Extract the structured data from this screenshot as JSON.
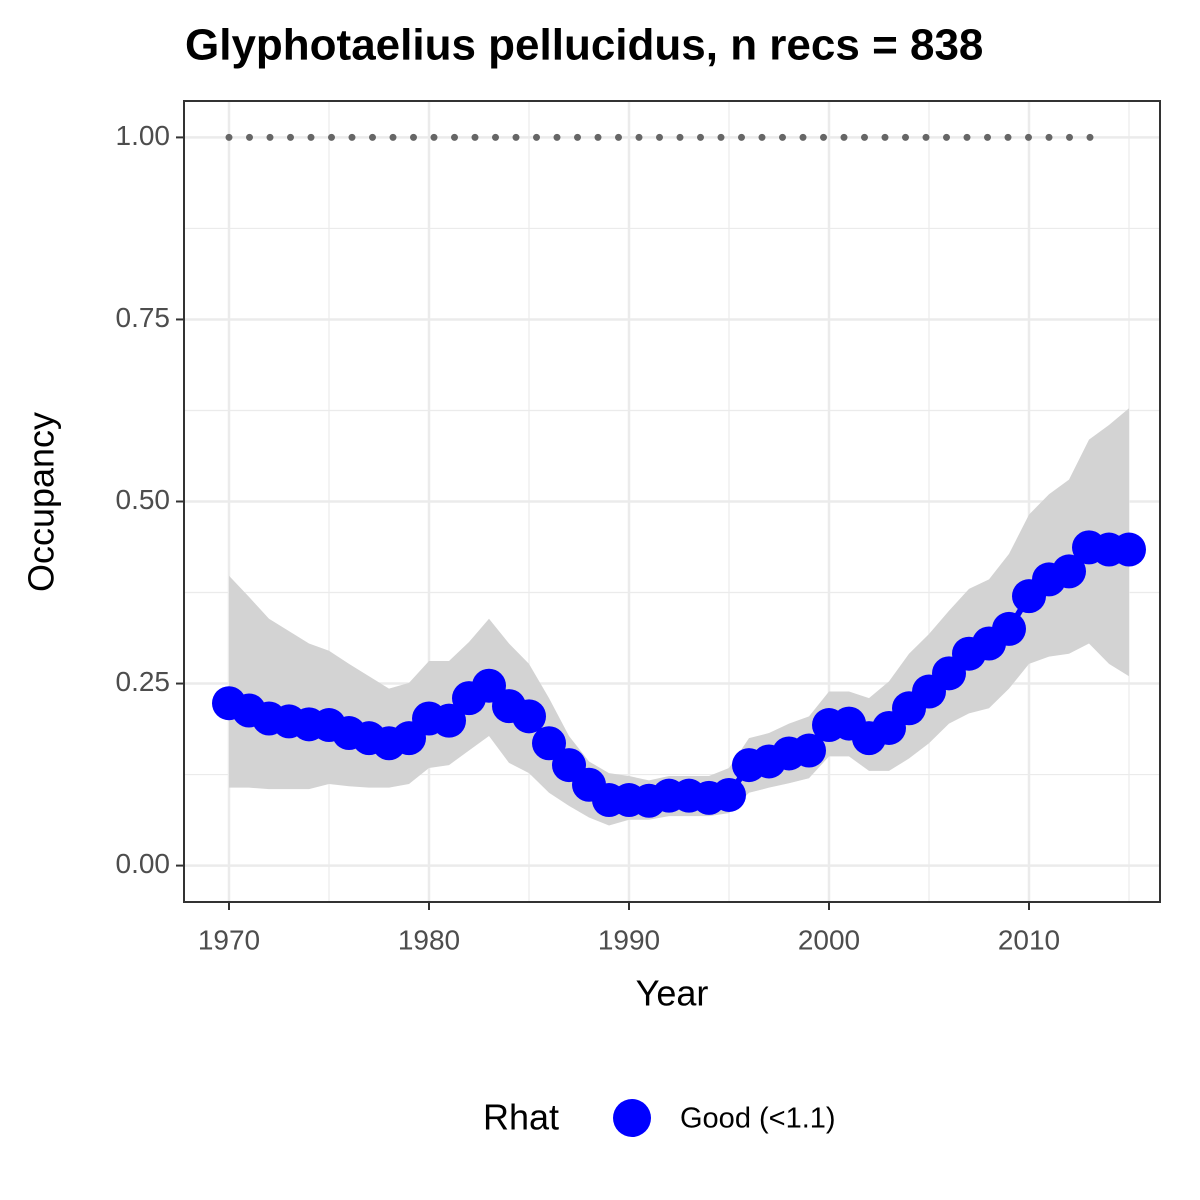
{
  "chart_data": {
    "type": "line",
    "title": "Glyphotaelius pellucidus, n recs = 838",
    "x_label": "Year",
    "y_label": "Occupancy",
    "legend_title": "Rhat",
    "legend_position": "bottom",
    "grid": true,
    "x": [
      1970,
      1971,
      1972,
      1973,
      1974,
      1975,
      1976,
      1977,
      1978,
      1979,
      1980,
      1981,
      1982,
      1983,
      1984,
      1985,
      1986,
      1987,
      1988,
      1989,
      1990,
      1991,
      1992,
      1993,
      1994,
      1995,
      1996,
      1997,
      1998,
      1999,
      2000,
      2001,
      2002,
      2003,
      2004,
      2005,
      2006,
      2007,
      2008,
      2009,
      2010,
      2011,
      2012,
      2013,
      2014,
      2015
    ],
    "series": [
      {
        "name": "Good (<1.1)",
        "color": "#0000ff",
        "ribbon_color": "#d3d3d3",
        "values": [
          0.223,
          0.213,
          0.202,
          0.198,
          0.194,
          0.193,
          0.182,
          0.175,
          0.168,
          0.175,
          0.202,
          0.199,
          0.23,
          0.247,
          0.219,
          0.205,
          0.168,
          0.138,
          0.111,
          0.09,
          0.09,
          0.089,
          0.096,
          0.096,
          0.093,
          0.097,
          0.138,
          0.143,
          0.154,
          0.158,
          0.193,
          0.195,
          0.175,
          0.189,
          0.216,
          0.239,
          0.264,
          0.291,
          0.305,
          0.325,
          0.37,
          0.393,
          0.404,
          0.437,
          0.434,
          0.434
        ],
        "upper": [
          0.398,
          0.369,
          0.339,
          0.322,
          0.305,
          0.295,
          0.277,
          0.26,
          0.243,
          0.251,
          0.281,
          0.281,
          0.307,
          0.339,
          0.305,
          0.277,
          0.23,
          0.178,
          0.143,
          0.127,
          0.123,
          0.117,
          0.123,
          0.123,
          0.123,
          0.134,
          0.175,
          0.182,
          0.195,
          0.205,
          0.239,
          0.239,
          0.23,
          0.253,
          0.291,
          0.318,
          0.35,
          0.38,
          0.393,
          0.428,
          0.482,
          0.51,
          0.53,
          0.585,
          0.605,
          0.628
        ],
        "lower": [
          0.107,
          0.107,
          0.105,
          0.105,
          0.105,
          0.112,
          0.109,
          0.107,
          0.107,
          0.112,
          0.134,
          0.138,
          0.158,
          0.178,
          0.141,
          0.127,
          0.1,
          0.082,
          0.066,
          0.055,
          0.063,
          0.063,
          0.068,
          0.068,
          0.068,
          0.072,
          0.1,
          0.107,
          0.113,
          0.12,
          0.15,
          0.15,
          0.13,
          0.13,
          0.147,
          0.168,
          0.195,
          0.209,
          0.216,
          0.243,
          0.277,
          0.287,
          0.291,
          0.305,
          0.277,
          0.26
        ]
      }
    ],
    "reference_line": {
      "x": [
        1970,
        2014
      ],
      "y": [
        1,
        1
      ],
      "color": "#666666",
      "linestyle": "dotted"
    },
    "xlim": [
      1967.75,
      2016.55
    ],
    "ylim": [
      -0.05,
      1.05
    ],
    "xticks": [
      1970,
      1980,
      1990,
      2000,
      2010
    ],
    "yticks": [
      {
        "value": 0,
        "label": "0.00"
      },
      {
        "value": 0.25,
        "label": "0.25"
      },
      {
        "value": 0.5,
        "label": "0.50"
      },
      {
        "value": 0.75,
        "label": "0.75"
      },
      {
        "value": 1,
        "label": "1.00"
      }
    ],
    "minor_xticks": [
      1975,
      1985,
      1995,
      2005,
      2015
    ],
    "minor_yticks": [
      0.125,
      0.375,
      0.625,
      0.875
    ]
  }
}
